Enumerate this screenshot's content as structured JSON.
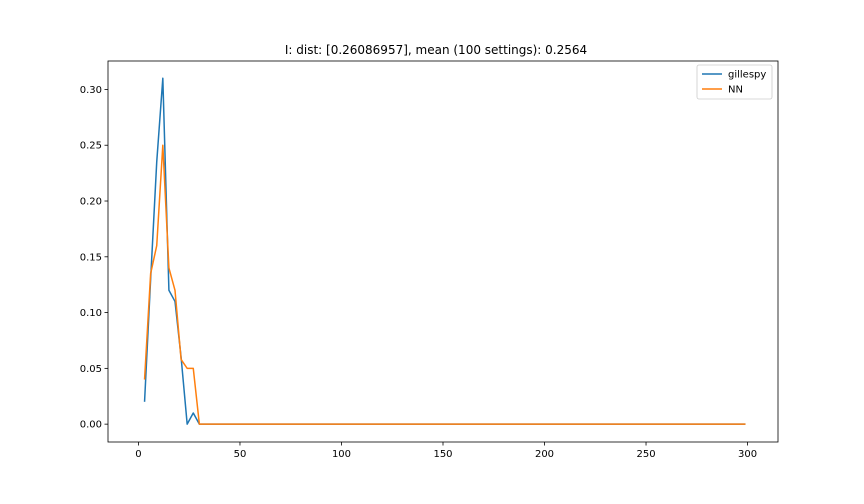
{
  "chart_data": {
    "type": "line",
    "title": "I: dist: [0.26086957], mean (100 settings): 0.2564",
    "xlabel": "",
    "ylabel": "",
    "xlim": [
      -15,
      315
    ],
    "ylim": [
      -0.016,
      0.3255
    ],
    "xticks": [
      0,
      50,
      100,
      150,
      200,
      250,
      300
    ],
    "yticks": [
      0.0,
      0.05,
      0.1,
      0.15,
      0.2,
      0.25,
      0.3
    ],
    "ytick_labels": [
      "0.00",
      "0.05",
      "0.10",
      "0.15",
      "0.20",
      "0.25",
      "0.30"
    ],
    "grid": false,
    "legend": "top-right",
    "series": [
      {
        "name": "gillespy",
        "color": "#1f77b4",
        "x": [
          3,
          6,
          9,
          12,
          15,
          18,
          21,
          24,
          27,
          30,
          299
        ],
        "y": [
          0.02,
          0.13,
          0.235,
          0.31,
          0.12,
          0.11,
          0.06,
          0.0,
          0.01,
          0.0,
          0.0
        ]
      },
      {
        "name": "NN",
        "color": "#ff7f0e",
        "x": [
          3,
          6,
          9,
          12,
          15,
          18,
          21,
          24,
          27,
          30,
          299
        ],
        "y": [
          0.04,
          0.135,
          0.16,
          0.25,
          0.14,
          0.12,
          0.058,
          0.05,
          0.05,
          0.0,
          0.0
        ]
      }
    ]
  }
}
